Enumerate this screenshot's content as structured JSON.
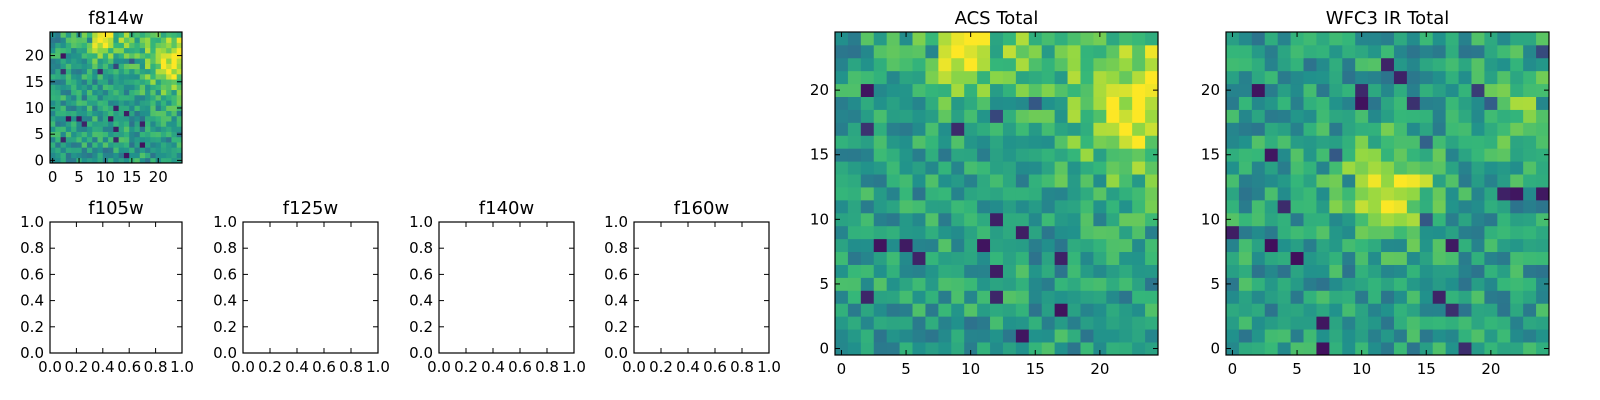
{
  "colormap": [
    "#440154",
    "#31688e",
    "#21918c",
    "#35b779",
    "#90d743",
    "#fde725"
  ],
  "chart_data": [
    {
      "type": "heatmap",
      "title": "f814w",
      "grid_size": 25,
      "xticks": [
        "0",
        "5",
        "10",
        "15",
        "20"
      ],
      "yticks": [
        "0",
        "5",
        "10",
        "15",
        "20"
      ],
      "xlim": [
        -0.5,
        24.5
      ],
      "ylim": [
        -0.5,
        24.5
      ],
      "grid": false,
      "seed": 11,
      "hot_spots": [
        {
          "x": 23.5,
          "y": 19,
          "r": 4,
          "w": 0.55
        },
        {
          "x": 10,
          "y": 24,
          "r": 3,
          "w": 0.5
        }
      ]
    },
    {
      "type": "heatmap",
      "title": "ACS Total",
      "grid_size": 25,
      "xticks": [
        "0",
        "5",
        "10",
        "15",
        "20"
      ],
      "yticks": [
        "0",
        "5",
        "10",
        "15",
        "20"
      ],
      "xlim": [
        -0.5,
        24.5
      ],
      "ylim": [
        -0.5,
        24.5
      ],
      "grid": false,
      "seed": 11,
      "hot_spots": [
        {
          "x": 23.5,
          "y": 19,
          "r": 4,
          "w": 0.55
        },
        {
          "x": 10,
          "y": 24,
          "r": 3,
          "w": 0.5
        }
      ]
    },
    {
      "type": "heatmap",
      "title": "WFC3 IR Total",
      "grid_size": 25,
      "xticks": [
        "0",
        "5",
        "10",
        "15",
        "20"
      ],
      "yticks": [
        "0",
        "5",
        "10",
        "15",
        "20"
      ],
      "xlim": [
        -0.5,
        24.5
      ],
      "ylim": [
        -0.5,
        24.5
      ],
      "grid": false,
      "seed": 29,
      "hot_spots": [
        {
          "x": 12,
          "y": 12.5,
          "r": 2.5,
          "w": 0.5
        },
        {
          "x": 23,
          "y": 18,
          "r": 2.5,
          "w": 0.35
        }
      ]
    },
    {
      "type": "table",
      "title": "f105w",
      "xticks": [
        "0.0",
        "0.2",
        "0.4",
        "0.6",
        "0.8",
        "1.0"
      ],
      "yticks": [
        "0.0",
        "0.2",
        "0.4",
        "0.6",
        "0.8",
        "1.0"
      ],
      "xlim": [
        0,
        1
      ],
      "ylim": [
        0,
        1
      ],
      "values": []
    },
    {
      "type": "table",
      "title": "f125w",
      "xticks": [
        "0.0",
        "0.2",
        "0.4",
        "0.6",
        "0.8",
        "1.0"
      ],
      "yticks": [
        "0.0",
        "0.2",
        "0.4",
        "0.6",
        "0.8",
        "1.0"
      ],
      "xlim": [
        0,
        1
      ],
      "ylim": [
        0,
        1
      ],
      "values": []
    },
    {
      "type": "table",
      "title": "f140w",
      "xticks": [
        "0.0",
        "0.2",
        "0.4",
        "0.6",
        "0.8",
        "1.0"
      ],
      "yticks": [
        "0.0",
        "0.2",
        "0.4",
        "0.6",
        "0.8",
        "1.0"
      ],
      "xlim": [
        0,
        1
      ],
      "ylim": [
        0,
        1
      ],
      "values": []
    },
    {
      "type": "table",
      "title": "f160w",
      "xticks": [
        "0.0",
        "0.2",
        "0.4",
        "0.6",
        "0.8",
        "1.0"
      ],
      "yticks": [
        "0.0",
        "0.2",
        "0.4",
        "0.6",
        "0.8",
        "1.0"
      ],
      "xlim": [
        0,
        1
      ],
      "ylim": [
        0,
        1
      ],
      "values": []
    }
  ]
}
